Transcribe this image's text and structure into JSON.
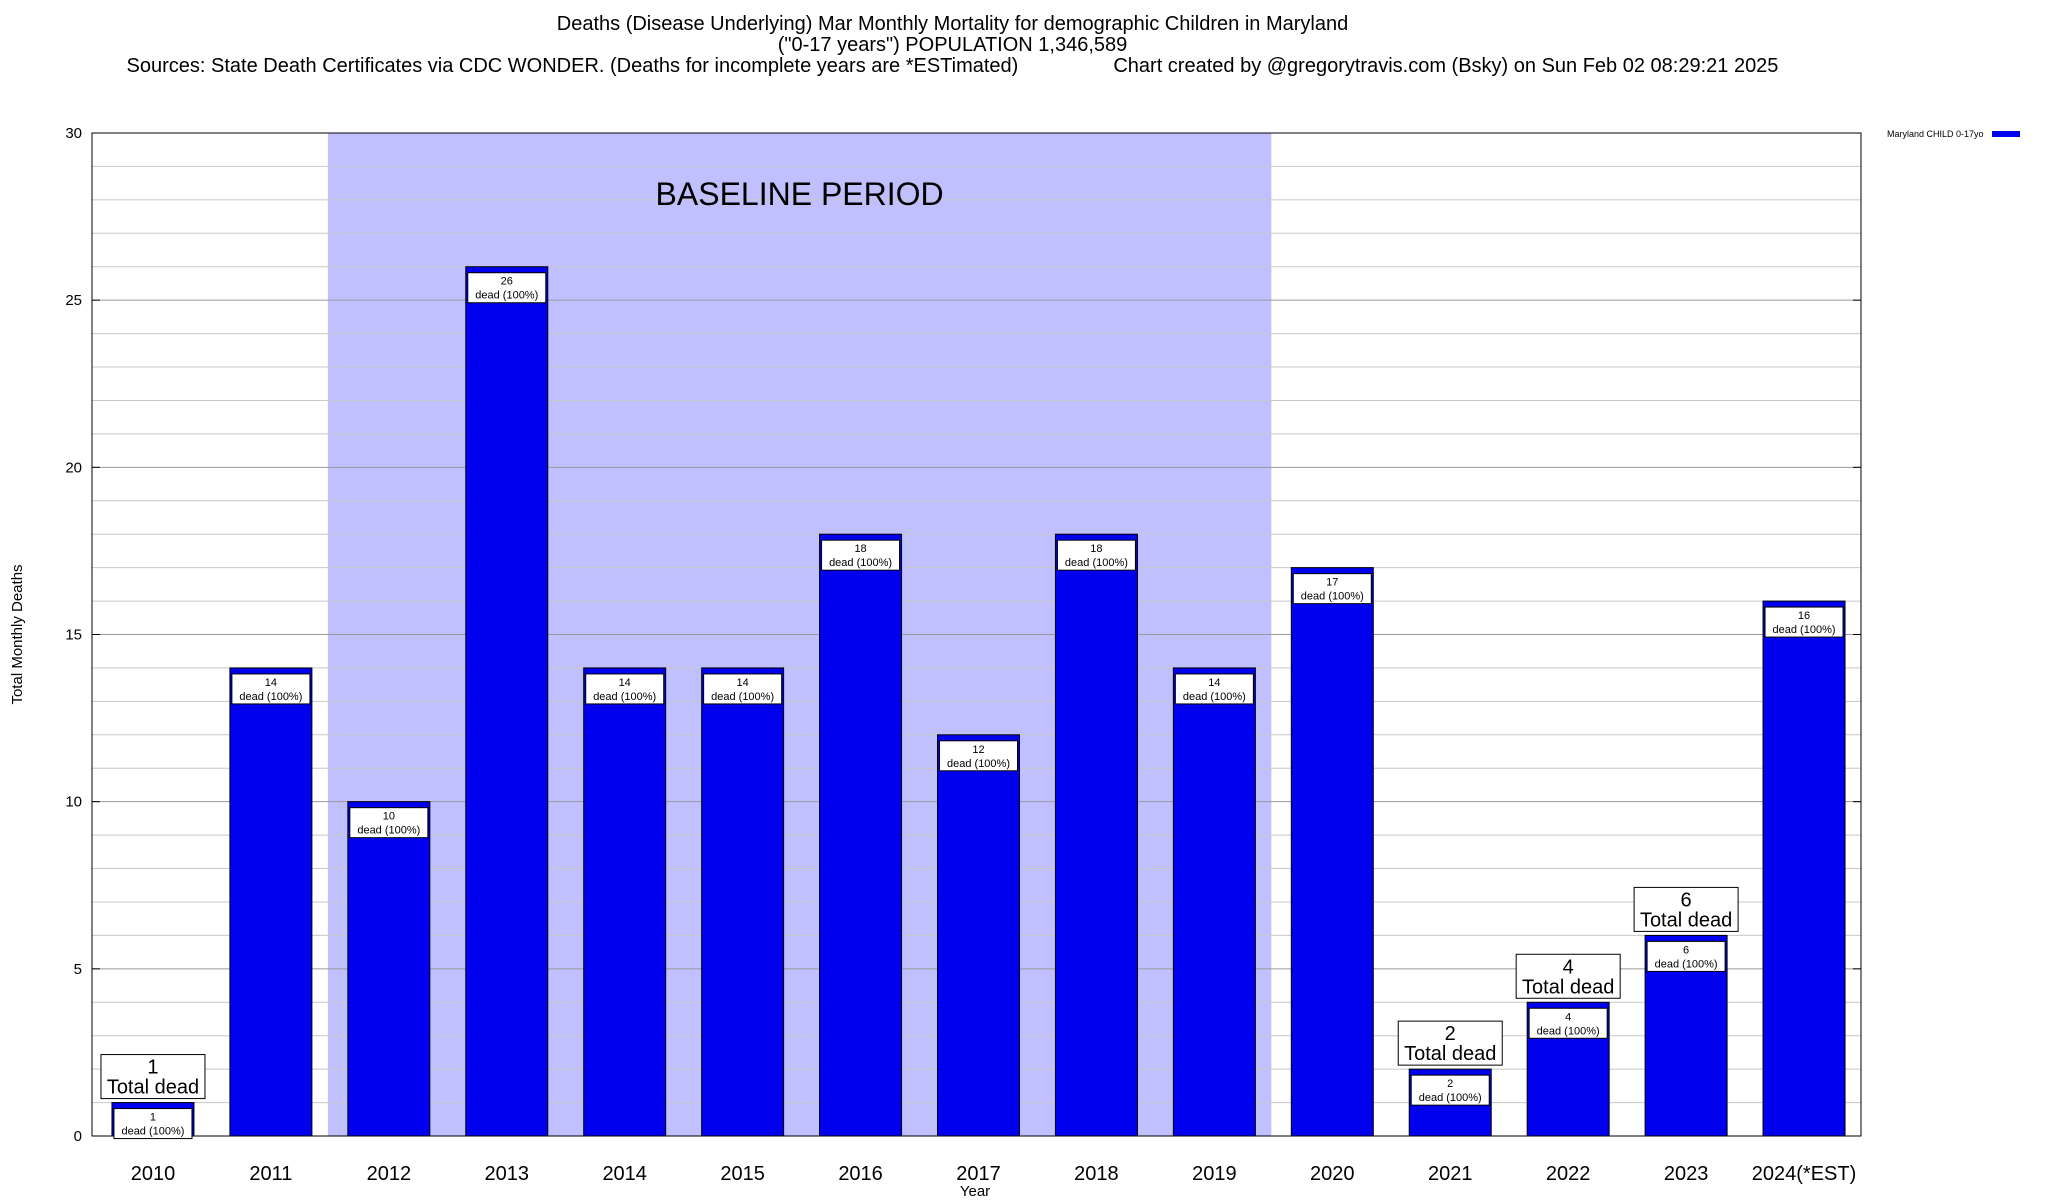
{
  "chart_data": {
    "type": "bar",
    "title": "Deaths (Disease Underlying) Mar Monthly Mortality for demographic Children in Maryland",
    "subtitle": "(\"0-17 years\") POPULATION 1,346,589",
    "sources": "Sources: State Death Certificates via CDC WONDER. (Deaths for incomplete years are *ESTimated)",
    "credit": "Chart created by @gregorytravis.com (Bsky) on Sun Feb 02 08:29:21 2025",
    "xlabel": "Year",
    "ylabel": "Total Monthly Deaths",
    "ylim": [
      0,
      30
    ],
    "yticks": [
      0,
      5,
      10,
      15,
      20,
      25,
      30
    ],
    "categories": [
      "2010",
      "2011",
      "2012",
      "2013",
      "2014",
      "2015",
      "2016",
      "2017",
      "2018",
      "2019",
      "2020",
      "2021",
      "2022",
      "2023",
      "2024(*EST)"
    ],
    "series": [
      {
        "name": "Maryland CHILD 0-17yo",
        "color": "#0000ee",
        "values": [
          1,
          14,
          10,
          26,
          14,
          14,
          18,
          12,
          18,
          14,
          17,
          2,
          4,
          6,
          16
        ]
      }
    ],
    "bar_labels": {
      "total_suffix": "Total dead",
      "inner_suffix": "dead (100%)",
      "total_label_hidden_for": [
        "2011",
        "2012",
        "2013",
        "2014",
        "2015",
        "2016",
        "2017",
        "2018",
        "2019",
        "2020",
        "2024(*EST)"
      ]
    },
    "shaded_region": {
      "label": "BASELINE PERIOD",
      "from": "2012",
      "to": "2019",
      "color": "#c0c0ff"
    },
    "grid": true,
    "legend_position": "top-right"
  }
}
